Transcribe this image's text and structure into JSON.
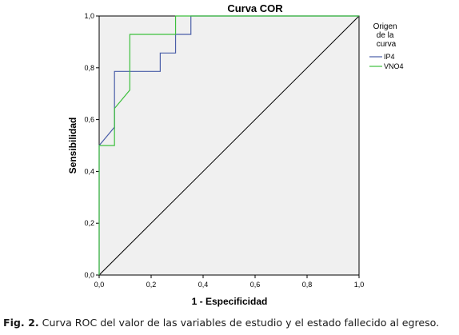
{
  "chart_data": {
    "type": "line",
    "title": "Curva COR",
    "xlabel": "1 - Especificidad",
    "ylabel": "Sensibilidad",
    "xlim": [
      0,
      1
    ],
    "ylim": [
      0,
      1
    ],
    "x_ticks": [
      "0,0",
      "0,2",
      "0,4",
      "0,6",
      "0,8",
      "1,0"
    ],
    "y_ticks": [
      "0,0",
      "0,2",
      "0,4",
      "0,6",
      "0,8",
      "1,0"
    ],
    "grid": false,
    "legend_title": "Origen de la curva",
    "legend_position": "right",
    "series": [
      {
        "name": "IP4",
        "color": "#4a5ea8",
        "points": [
          [
            0,
            0
          ],
          [
            0,
            0.5
          ],
          [
            0.059,
            0.571
          ],
          [
            0.059,
            0.786
          ],
          [
            0.235,
            0.786
          ],
          [
            0.235,
            0.857
          ],
          [
            0.294,
            0.857
          ],
          [
            0.294,
            0.929
          ],
          [
            0.353,
            0.929
          ],
          [
            0.353,
            1.0
          ],
          [
            1.0,
            1.0
          ]
        ]
      },
      {
        "name": "VNO4",
        "color": "#3dbf3d",
        "points": [
          [
            0,
            0
          ],
          [
            0,
            0.5
          ],
          [
            0.059,
            0.5
          ],
          [
            0.059,
            0.643
          ],
          [
            0.118,
            0.714
          ],
          [
            0.118,
            0.929
          ],
          [
            0.294,
            0.929
          ],
          [
            0.294,
            1.0
          ],
          [
            1.0,
            1.0
          ]
        ]
      }
    ]
  },
  "caption": {
    "label": "Fig. 2.",
    "text": " Curva ROC del valor de las variables de estudio y el estado fallecido al egreso."
  },
  "colors": {
    "plot_background": "#f0f0f0",
    "diagonal": "#000000"
  }
}
